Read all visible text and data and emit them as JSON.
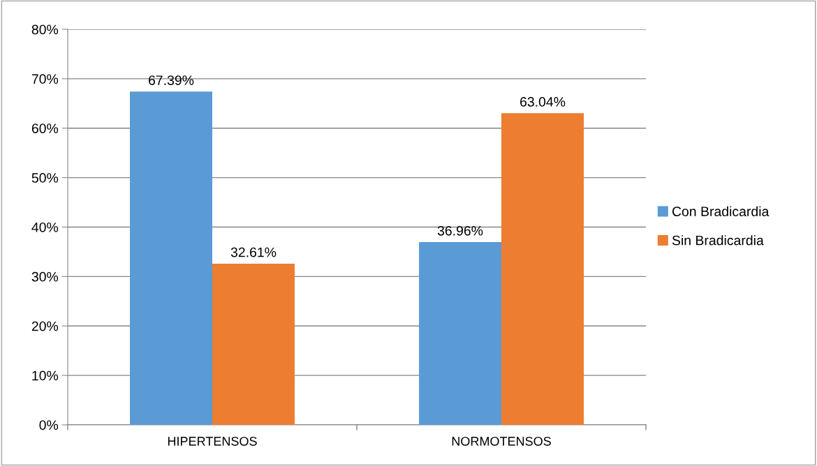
{
  "chart_data": {
    "type": "bar",
    "categories": [
      "HIPERTENSOS",
      "NORMOTENSOS"
    ],
    "series": [
      {
        "name": "Con Bradicardia",
        "color": "#5b9bd5",
        "values": [
          67.39,
          36.96
        ],
        "value_labels": [
          "67.39%",
          "36.96%"
        ]
      },
      {
        "name": "Sin Bradicardia",
        "color": "#ed7d31",
        "values": [
          32.61,
          63.04
        ],
        "value_labels": [
          "32.61%",
          "63.04%"
        ]
      }
    ],
    "ylim": [
      0,
      80
    ],
    "yticks": [
      {
        "value": 0,
        "label": "0%"
      },
      {
        "value": 10,
        "label": "10%"
      },
      {
        "value": 20,
        "label": "20%"
      },
      {
        "value": 30,
        "label": "30%"
      },
      {
        "value": 40,
        "label": "40%"
      },
      {
        "value": 50,
        "label": "50%"
      },
      {
        "value": 60,
        "label": "60%"
      },
      {
        "value": 70,
        "label": "70%"
      },
      {
        "value": 80,
        "label": "80%"
      }
    ],
    "grid": "y",
    "legend": "right"
  }
}
